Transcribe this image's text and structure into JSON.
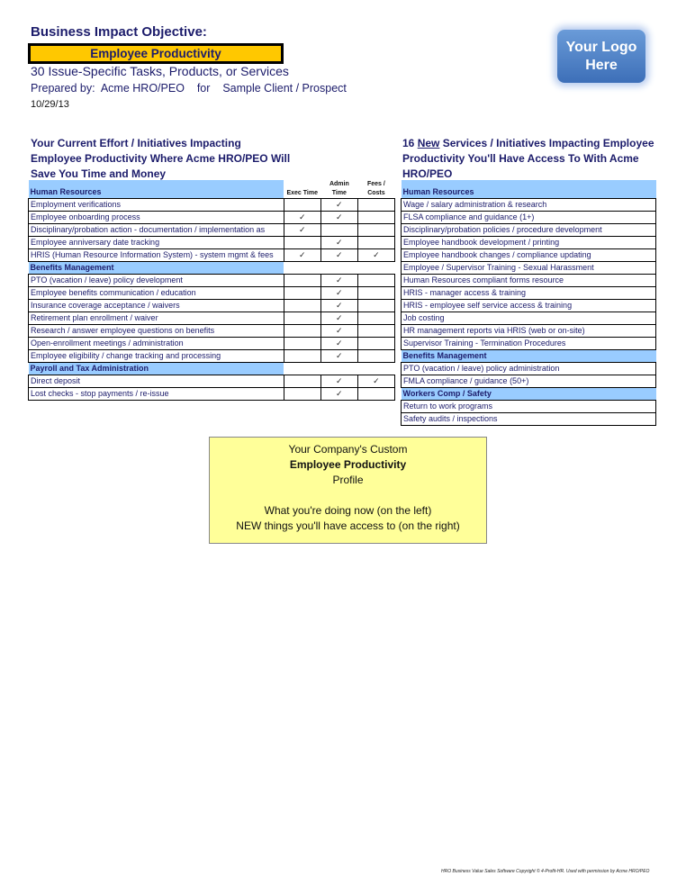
{
  "header": {
    "label": "Business Impact Objective:",
    "objective": "Employee Productivity",
    "subtitle": "30 Issue-Specific Tasks, Products, or Services",
    "prepared_label": "Prepared by:",
    "preparer": "Acme HRO/PEO",
    "for_label": "for",
    "client": "Sample Client / Prospect",
    "date": "10/29/13",
    "logo_text": "Your Logo Here"
  },
  "left": {
    "heading": "Your Current Effort / Initiatives Impacting Employee Productivity Where Acme HRO/PEO Will Save You Time and Money",
    "columns": [
      "Exec Time",
      "Admin Time",
      "Fees / Costs"
    ],
    "sections": [
      {
        "title": "Human Resources",
        "rows": [
          {
            "label": "Employment verifications",
            "checks": [
              false,
              true,
              false
            ]
          },
          {
            "label": "Employee onboarding process",
            "checks": [
              true,
              true,
              false
            ]
          },
          {
            "label": "Disciplinary/probation action - documentation / implementation as",
            "checks": [
              true,
              false,
              false
            ]
          },
          {
            "label": "Employee anniversary date tracking",
            "checks": [
              false,
              true,
              false
            ]
          },
          {
            "label": "HRIS (Human Resource Information System) - system mgmt & fees",
            "checks": [
              true,
              true,
              true
            ]
          }
        ]
      },
      {
        "title": "Benefits Management",
        "rows": [
          {
            "label": "PTO (vacation / leave) policy development",
            "checks": [
              false,
              true,
              false
            ]
          },
          {
            "label": "Employee benefits communication / education",
            "checks": [
              false,
              true,
              false
            ]
          },
          {
            "label": "Insurance coverage acceptance / waivers",
            "checks": [
              false,
              true,
              false
            ]
          },
          {
            "label": "Retirement plan enrollment / waiver",
            "checks": [
              false,
              true,
              false
            ]
          },
          {
            "label": "Research / answer employee questions on benefits",
            "checks": [
              false,
              true,
              false
            ]
          },
          {
            "label": "Open-enrollment meetings / administration",
            "checks": [
              false,
              true,
              false
            ]
          },
          {
            "label": "Employee eligibility / change tracking and processing",
            "checks": [
              false,
              true,
              false
            ]
          }
        ]
      },
      {
        "title": "Payroll and Tax Administration",
        "rows": [
          {
            "label": "Direct deposit",
            "checks": [
              false,
              true,
              true
            ]
          },
          {
            "label": "Lost checks - stop payments / re-issue",
            "checks": [
              false,
              true,
              false
            ]
          }
        ]
      }
    ]
  },
  "right": {
    "heading_count": "16",
    "heading_new": "New",
    "heading_rest": "Services / Initiatives Impacting Employee Productivity You'll Have Access To With Acme HRO/PEO",
    "sections": [
      {
        "title": "Human Resources",
        "rows": [
          "Wage / salary administration & research",
          "FLSA compliance and guidance (1+)",
          "Disciplinary/probation policies / procedure development",
          "Employee handbook development / printing",
          "Employee handbook changes / compliance updating",
          "Employee / Supervisor Training - Sexual Harassment",
          "Human Resources compliant forms resource",
          "HRIS - manager access & training",
          "HRIS - employee self service access & training",
          "Job costing",
          "HR management reports via HRIS (web or on-site)",
          "Supervisor Training - Termination Procedures"
        ]
      },
      {
        "title": "Benefits Management",
        "rows": [
          "PTO (vacation / leave) policy administration",
          "FMLA compliance / guidance (50+)"
        ]
      },
      {
        "title": "Workers Comp / Safety",
        "rows": [
          "Return to work programs",
          "Safety audits / inspections"
        ]
      }
    ]
  },
  "profile_box": {
    "line1": "Your Company's Custom",
    "line2": "Employee Productivity",
    "line3": "Profile",
    "line4": "What you're doing now (on the left)",
    "line5": "NEW things you'll have access to (on the right)"
  },
  "check_glyph": "✓",
  "footer": "HRO Business Value Sales Software Copyright © 4-Profit-HR.  Used with permission by Acme HRO/PEO",
  "colors": {
    "objective_bg": "#ffc800",
    "section_bg": "#99ccff",
    "profile_bg": "#ffff99",
    "text": "#1c1c6b"
  }
}
